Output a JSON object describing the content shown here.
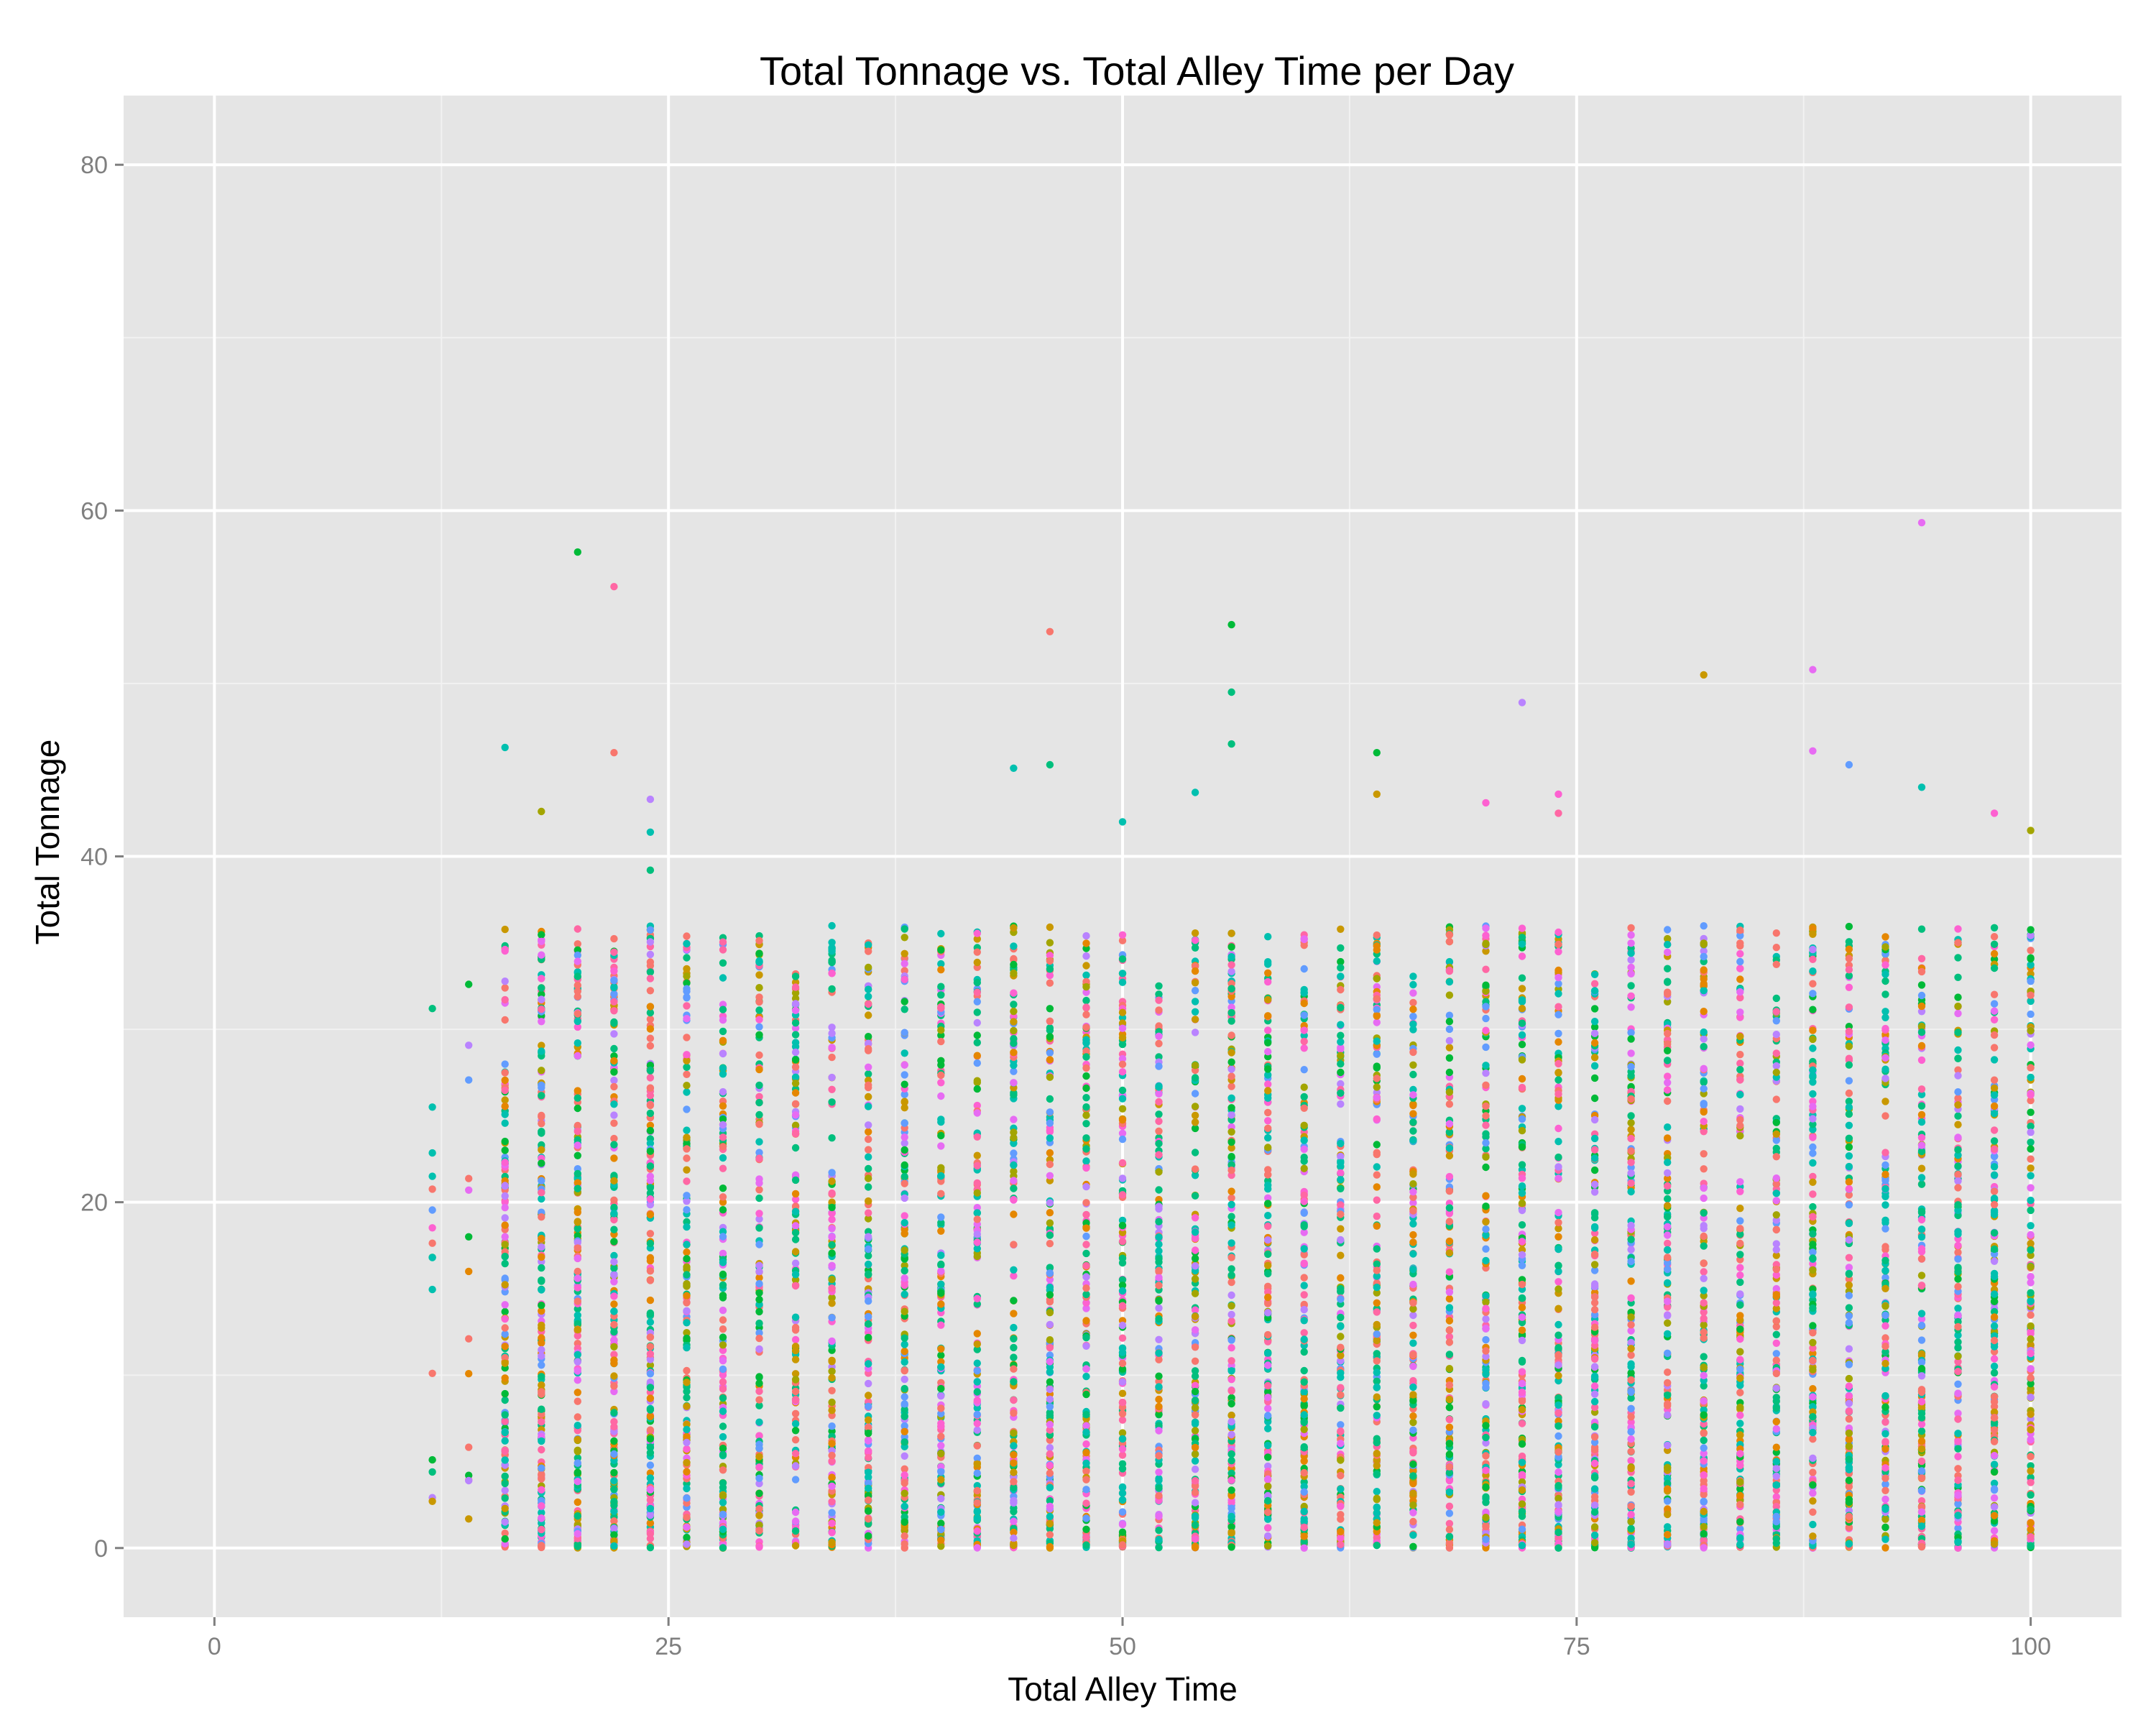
{
  "chart_data": {
    "type": "scatter",
    "title": "Total Tonnage vs. Total Alley Time per Day",
    "xlabel": "Total Alley Time",
    "ylabel": "Total Tonnage",
    "xlim": [
      -5,
      105
    ],
    "ylim": [
      -4,
      84
    ],
    "x_ticks": [
      0,
      25,
      50,
      75,
      100
    ],
    "x_tick_labels": [
      "0",
      "25",
      "50",
      "75",
      "100"
    ],
    "y_ticks": [
      0,
      20,
      40,
      60,
      80
    ],
    "y_tick_labels": [
      "0",
      "20",
      "40",
      "60",
      "80"
    ],
    "grid": true,
    "legend": "none",
    "colors": {
      "panel_background": "#e5e5e5",
      "grid_major": "#ffffff",
      "grid_minor": "#f2f2f2",
      "tick_label": "#7f7f7f",
      "series_palette": [
        "#f8766d",
        "#e58700",
        "#c99800",
        "#a3a500",
        "#6bb100",
        "#00ba38",
        "#00bf7d",
        "#00c0af",
        "#00bcd8",
        "#00b0f6",
        "#619cff",
        "#b983ff",
        "#e76bf3",
        "#fd61d1",
        "#ff67a4"
      ]
    },
    "x_positions": [
      12,
      14,
      16,
      18,
      20,
      22,
      24,
      26,
      28,
      30,
      32,
      34,
      36,
      38,
      40,
      42,
      44,
      46,
      48,
      50,
      52,
      54,
      56,
      58,
      60,
      62,
      64,
      66,
      68,
      70,
      72,
      74,
      76,
      78,
      80,
      82,
      84,
      86,
      88,
      90,
      92,
      94,
      96,
      98,
      100
    ],
    "column_max_y": [
      31.2,
      32.6,
      46.3,
      42.6,
      57.6,
      55.6,
      43.3,
      37.8,
      35.8,
      39.9,
      33.4,
      40.7,
      38.7,
      36.1,
      35.7,
      36.1,
      45.1,
      53.0,
      40.1,
      42.0,
      32.7,
      43.7,
      53.4,
      37.7,
      40.7,
      37.3,
      46.0,
      34.1,
      38.6,
      43.1,
      48.9,
      43.6,
      33.6,
      40.8,
      38.6,
      50.5,
      38.6,
      41.5,
      50.8,
      45.3,
      37.3,
      59.3,
      40.7,
      42.5,
      41.5
    ],
    "column_point_counts": [
      8,
      7,
      140,
      160,
      170,
      170,
      165,
      140,
      130,
      125,
      120,
      125,
      140,
      135,
      140,
      130,
      135,
      150,
      145,
      140,
      135,
      145,
      160,
      150,
      140,
      135,
      140,
      135,
      135,
      145,
      150,
      150,
      140,
      140,
      135,
      145,
      140,
      135,
      145,
      140,
      145,
      150,
      140,
      145,
      150
    ],
    "outliers": [
      {
        "x": 12,
        "y": 31.2
      },
      {
        "x": 12,
        "y": 25.5
      },
      {
        "x": 12,
        "y": 21.5
      },
      {
        "x": 12,
        "y": 16.8
      },
      {
        "x": 12,
        "y": 10.1
      },
      {
        "x": 12,
        "y": 5.1
      },
      {
        "x": 12,
        "y": 4.4
      },
      {
        "x": 12,
        "y": 2.7
      },
      {
        "x": 14,
        "y": 32.6
      },
      {
        "x": 14,
        "y": 20.7
      },
      {
        "x": 14,
        "y": 18.0
      },
      {
        "x": 14,
        "y": 16.0
      },
      {
        "x": 14,
        "y": 12.1
      },
      {
        "x": 14,
        "y": 4.2
      },
      {
        "x": 14,
        "y": 3.9
      },
      {
        "x": 20,
        "y": 57.6
      },
      {
        "x": 22,
        "y": 55.6
      },
      {
        "x": 22,
        "y": 46.0
      },
      {
        "x": 16,
        "y": 46.3
      },
      {
        "x": 18,
        "y": 42.6
      },
      {
        "x": 24,
        "y": 43.3
      },
      {
        "x": 24,
        "y": 41.4
      },
      {
        "x": 24,
        "y": 39.2
      },
      {
        "x": 46,
        "y": 53.0
      },
      {
        "x": 44,
        "y": 45.1
      },
      {
        "x": 46,
        "y": 45.3
      },
      {
        "x": 50,
        "y": 42.0
      },
      {
        "x": 56,
        "y": 53.4
      },
      {
        "x": 56,
        "y": 49.5
      },
      {
        "x": 56,
        "y": 46.5
      },
      {
        "x": 54,
        "y": 43.7
      },
      {
        "x": 64,
        "y": 46.0
      },
      {
        "x": 64,
        "y": 43.6
      },
      {
        "x": 70,
        "y": 43.1
      },
      {
        "x": 72,
        "y": 48.9
      },
      {
        "x": 74,
        "y": 43.6
      },
      {
        "x": 74,
        "y": 42.5
      },
      {
        "x": 82,
        "y": 50.5
      },
      {
        "x": 88,
        "y": 50.8
      },
      {
        "x": 88,
        "y": 46.1
      },
      {
        "x": 90,
        "y": 45.3
      },
      {
        "x": 94,
        "y": 59.3
      },
      {
        "x": 94,
        "y": 44.0
      },
      {
        "x": 98,
        "y": 42.5
      },
      {
        "x": 100,
        "y": 41.5
      }
    ]
  }
}
